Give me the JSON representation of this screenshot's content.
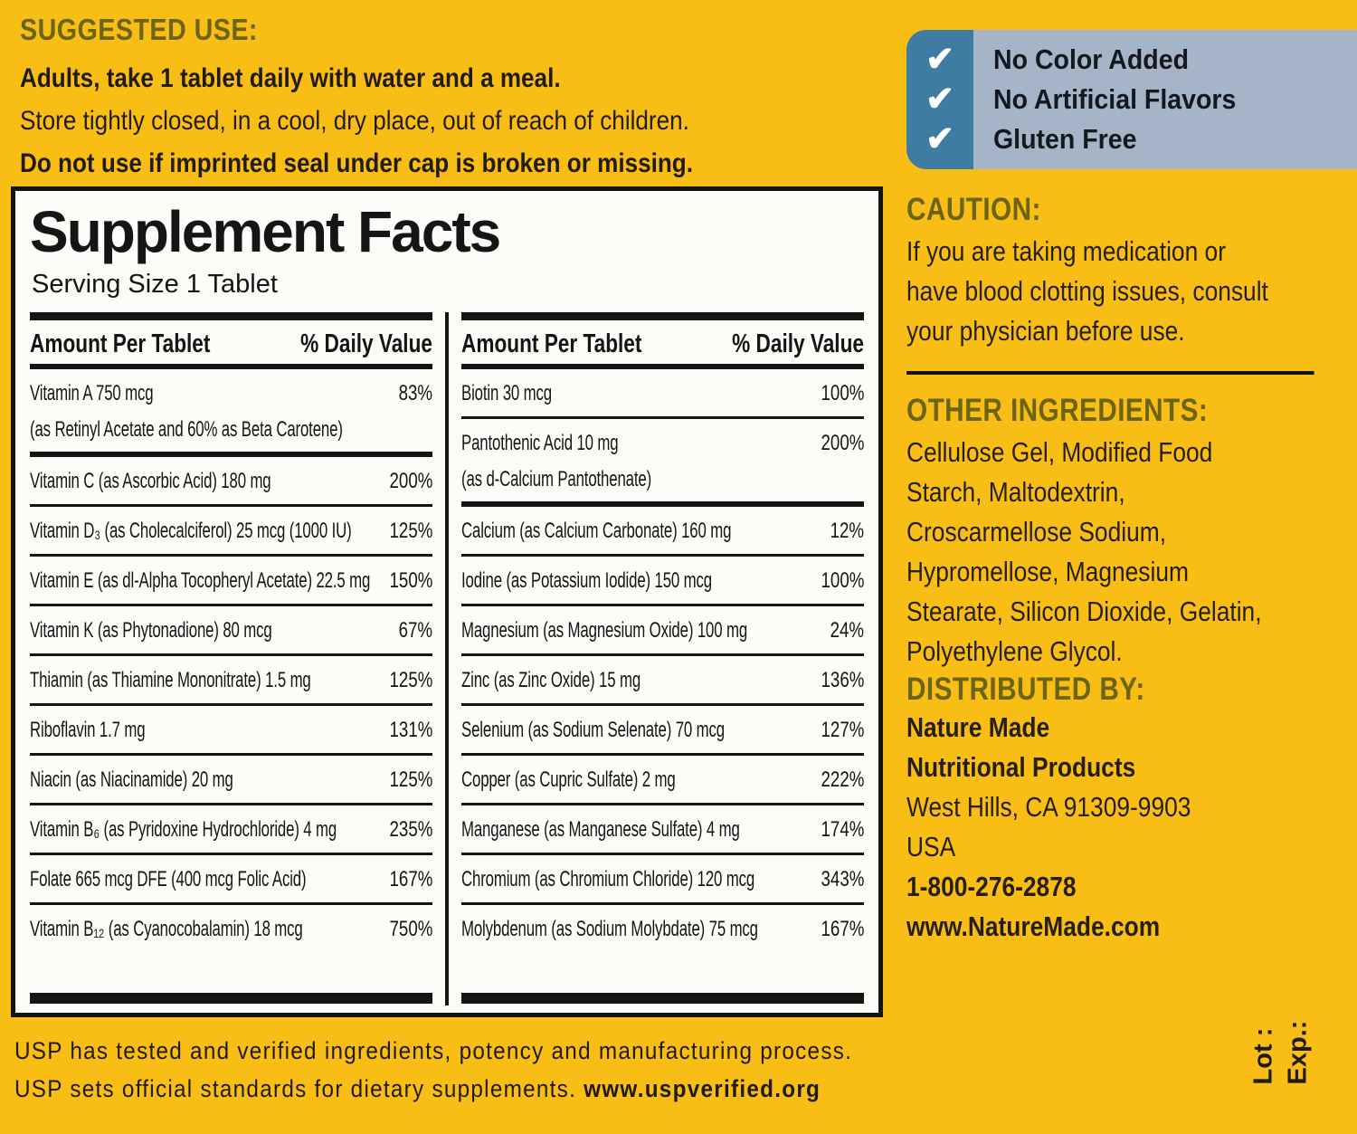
{
  "colors": {
    "background": "#F9BE15",
    "heading_olive": "#6B6414",
    "text_ink": "#221C10",
    "table_black": "#151515",
    "panel_bg": "#FCFCF9",
    "badge_stripe_blue": "#3E7CA4",
    "badge_bg_blue": "#A6B4C7",
    "checkmark_white": "#FFFFFF"
  },
  "suggested_use": {
    "heading": "SUGGESTED USE:",
    "lines": [
      "Adults, take 1 tablet daily with water and a meal.",
      "Store tightly closed, in a cool, dry place, out of reach of children.",
      "Do not use if imprinted seal under cap is broken or missing."
    ]
  },
  "badges": {
    "check": "✔",
    "items": [
      "No Color Added",
      "No Artificial Flavors",
      "Gluten Free"
    ]
  },
  "supplement_facts": {
    "title": "Supplement Facts",
    "serving_size": "Serving Size 1 Tablet",
    "col_amount": "Amount Per Tablet",
    "col_dv": "% Daily Value",
    "left_rows": [
      {
        "name": "Vitamin A 750 mcg",
        "sub": "(as Retinyl Acetate and 60% as Beta Carotene)",
        "dv": "83%"
      },
      {
        "name": "Vitamin C (as Ascorbic Acid) 180 mg",
        "dv": "200%"
      },
      {
        "name": "Vitamin D₃ (as Cholecalciferol) 25 mcg (1000 IU)",
        "dv": "125%"
      },
      {
        "name": "Vitamin E (as dl-Alpha Tocopheryl Acetate) 22.5 mg",
        "dv": "150%"
      },
      {
        "name": "Vitamin K (as Phytonadione) 80 mcg",
        "dv": "67%"
      },
      {
        "name": "Thiamin (as Thiamine Mononitrate) 1.5 mg",
        "dv": "125%"
      },
      {
        "name": "Riboflavin 1.7 mg",
        "dv": "131%"
      },
      {
        "name": "Niacin (as Niacinamide) 20 mg",
        "dv": "125%"
      },
      {
        "name": "Vitamin B₆ (as Pyridoxine Hydrochloride) 4 mg",
        "dv": "235%"
      },
      {
        "name": "Folate 665 mcg DFE (400 mcg Folic Acid)",
        "dv": "167%"
      },
      {
        "name": "Vitamin B₁₂ (as Cyanocobalamin) 18 mcg",
        "dv": "750%"
      }
    ],
    "right_rows": [
      {
        "name": "Biotin 30 mcg",
        "dv": "100%"
      },
      {
        "name": "Pantothenic Acid 10 mg",
        "sub": "(as d-Calcium Pantothenate)",
        "dv": "200%"
      },
      {
        "name": "Calcium (as Calcium Carbonate) 160 mg",
        "dv": "12%"
      },
      {
        "name": "Iodine (as Potassium Iodide) 150 mcg",
        "dv": "100%"
      },
      {
        "name": "Magnesium (as Magnesium Oxide) 100 mg",
        "dv": "24%"
      },
      {
        "name": "Zinc (as Zinc Oxide) 15 mg",
        "dv": "136%"
      },
      {
        "name": "Selenium (as Sodium Selenate) 70 mcg",
        "dv": "127%"
      },
      {
        "name": "Copper (as Cupric Sulfate) 2 mg",
        "dv": "222%"
      },
      {
        "name": "Manganese (as Manganese Sulfate) 4 mg",
        "dv": "174%"
      },
      {
        "name": "Chromium (as Chromium Chloride) 120 mcg",
        "dv": "343%"
      },
      {
        "name": "Molybdenum (as Sodium Molybdate) 75 mcg",
        "dv": "167%"
      }
    ]
  },
  "caution": {
    "heading": "CAUTION:",
    "lines": [
      "If you are taking medication or",
      "have blood clotting issues, consult",
      "your physician before use."
    ]
  },
  "other_ingredients": {
    "heading": "OTHER INGREDIENTS:",
    "lines": [
      "Cellulose Gel, Modified Food",
      "Starch, Maltodextrin,",
      "Croscarmellose Sodium,",
      "Hypromellose, Magnesium",
      "Stearate, Silicon Dioxide, Gelatin,",
      "Polyethylene Glycol."
    ]
  },
  "distributed_by": {
    "heading": "DISTRIBUTED BY:",
    "lines": [
      "Nature Made",
      "Nutritional Products",
      "West Hills, CA 91309-9903",
      "USA",
      "1-800-276-2878",
      "www.NatureMade.com"
    ]
  },
  "usp": {
    "line1": "USP has tested and verified ingredients, potency and manufacturing process.",
    "line2_prefix": "USP sets official standards for dietary supplements. ",
    "line2_url": "www.uspverified.org"
  },
  "lot_exp": {
    "lot": "Lot :",
    "exp": "Exp.:"
  }
}
